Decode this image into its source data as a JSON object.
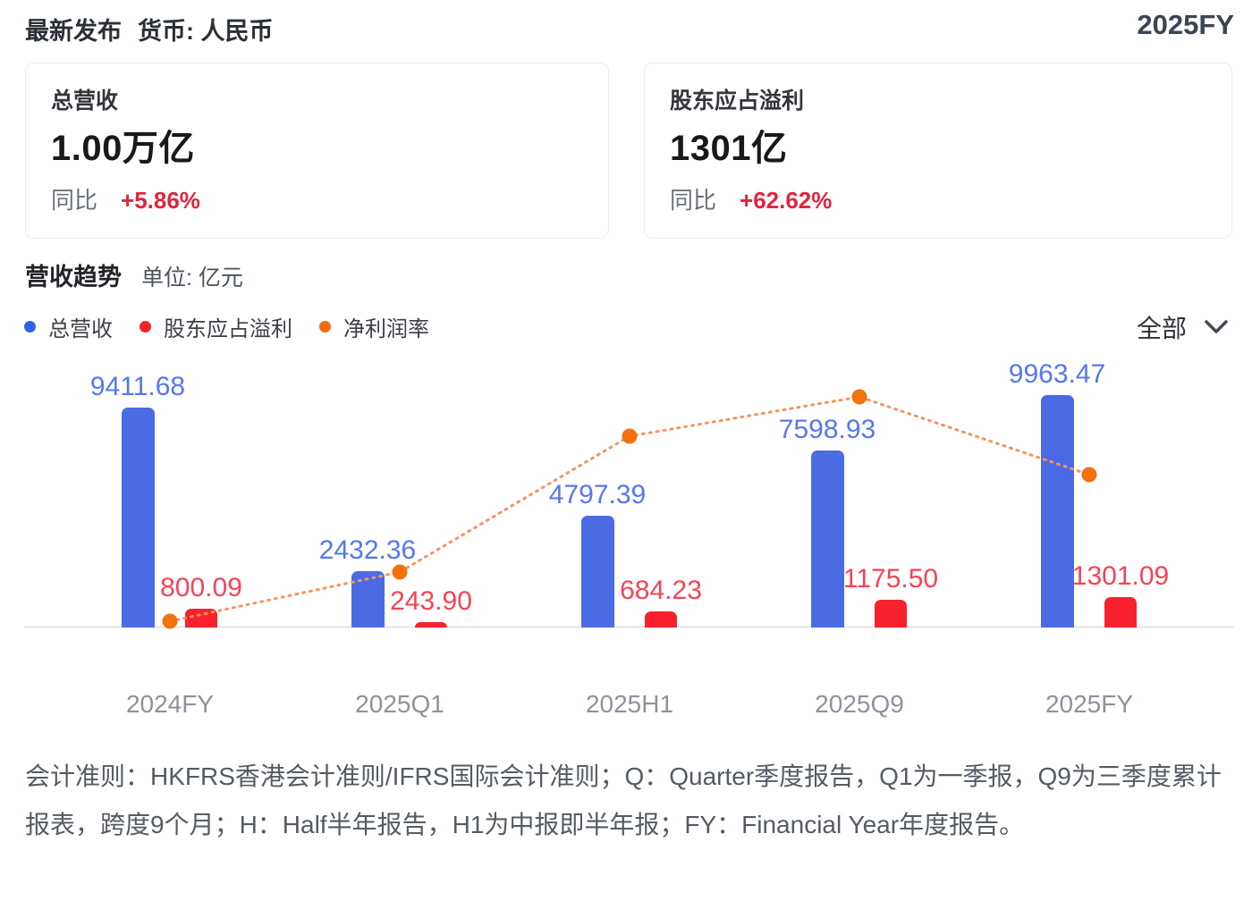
{
  "header": {
    "title": "最新发布",
    "currency_label": "货币: 人民币",
    "period": "2025FY"
  },
  "cards": [
    {
      "title": "总营收",
      "value": "1.00万亿",
      "yoy_label": "同比",
      "yoy_value": "+5.86%"
    },
    {
      "title": "股东应占溢利",
      "value": "1301亿",
      "yoy_label": "同比",
      "yoy_value": "+62.62%"
    }
  ],
  "section": {
    "title": "营收趋势",
    "unit_label": "单位: 亿元"
  },
  "legend": [
    {
      "label": "总营收",
      "color": "#2f62e9"
    },
    {
      "label": "股东应占溢利",
      "color": "#f5222d"
    },
    {
      "label": "净利润率",
      "color": "#f56a0c"
    }
  ],
  "filter": {
    "label": "全部",
    "icon": "chevron-down-icon"
  },
  "chart_data": {
    "type": "bar",
    "title": "营收趋势",
    "unit": "亿元",
    "categories": [
      "2024FY",
      "2025Q1",
      "2025H1",
      "2025Q9",
      "2025FY"
    ],
    "series": [
      {
        "name": "总营收",
        "type": "bar",
        "color": "#4a6be4",
        "label_color": "#5577f0",
        "values": [
          9411.68,
          2432.36,
          4797.39,
          7598.93,
          9963.47
        ]
      },
      {
        "name": "股东应占溢利",
        "type": "bar",
        "color": "#f8222e",
        "label_color": "#f54355",
        "values": [
          800.09,
          243.9,
          684.23,
          1175.5,
          1301.09
        ]
      },
      {
        "name": "净利润率",
        "type": "line",
        "style": "dotted",
        "color": "#f2720e",
        "line_color": "#f9925c",
        "labeled": false,
        "values_percent": [
          8.5,
          10.03,
          14.26,
          15.47,
          13.06
        ]
      }
    ],
    "value_labels_visible": true,
    "grid": false,
    "legend_position": "top-left",
    "axis_label_color": "#8d929c"
  },
  "footer": {
    "note": "会计准则：HKFRS香港会计准则/IFRS国际会计准则；Q：Quarter季度报告，Q1为一季报，Q9为三季度累计报表，跨度9个月；H：Half半年报告，H1为中报即半年报；FY：Financial Year年度报告。"
  }
}
